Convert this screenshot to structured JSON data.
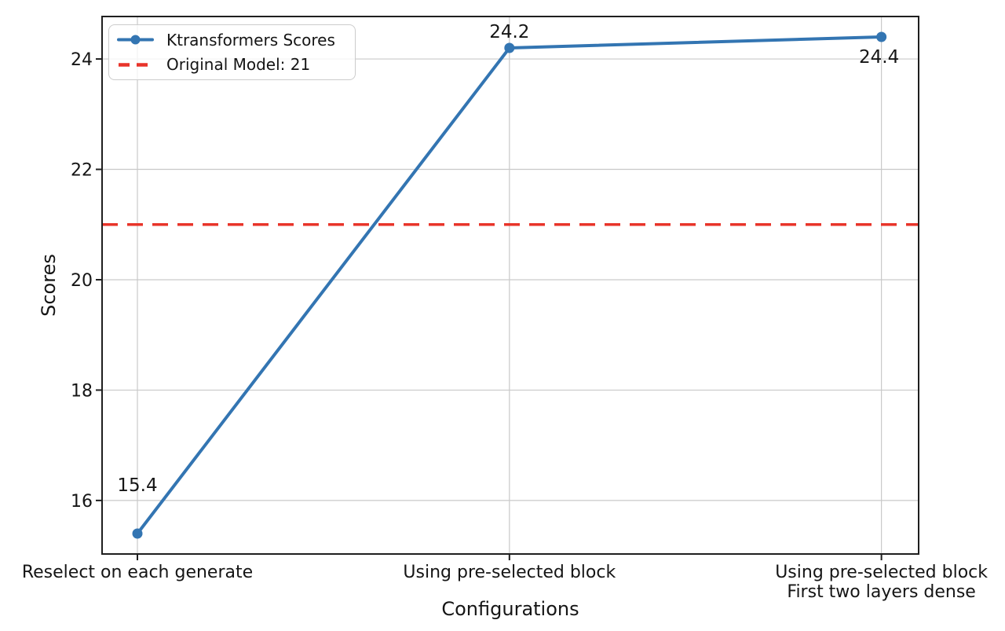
{
  "chart_data": {
    "type": "line",
    "title": "",
    "xlabel": "Configurations",
    "ylabel": "Scores",
    "categories": [
      "Reselect on each generate",
      "Using pre-selected block",
      "Using pre-selected block\nFirst two layers dense"
    ],
    "yticks": [
      "16",
      "18",
      "20",
      "22",
      "24"
    ],
    "ylim": [
      15.03,
      24.77
    ],
    "xlim": [
      -0.095,
      2.1
    ],
    "grid": true,
    "legend_position": "upper-left",
    "series": [
      {
        "name": "Ktransformers Scores",
        "color": "#3375b2",
        "marker": "circle",
        "line_style": "solid",
        "values": [
          15.4,
          24.2,
          24.4
        ],
        "point_labels": [
          "15.4",
          "24.2",
          "24.4"
        ],
        "label_offsets": [
          [
            0,
            -62
          ],
          [
            0,
            -21
          ],
          [
            -3,
            25
          ]
        ]
      }
    ],
    "reference_line": {
      "label": "Original Model: 21",
      "value": 21,
      "color": "#e8342a",
      "line_style": "dashed"
    }
  }
}
